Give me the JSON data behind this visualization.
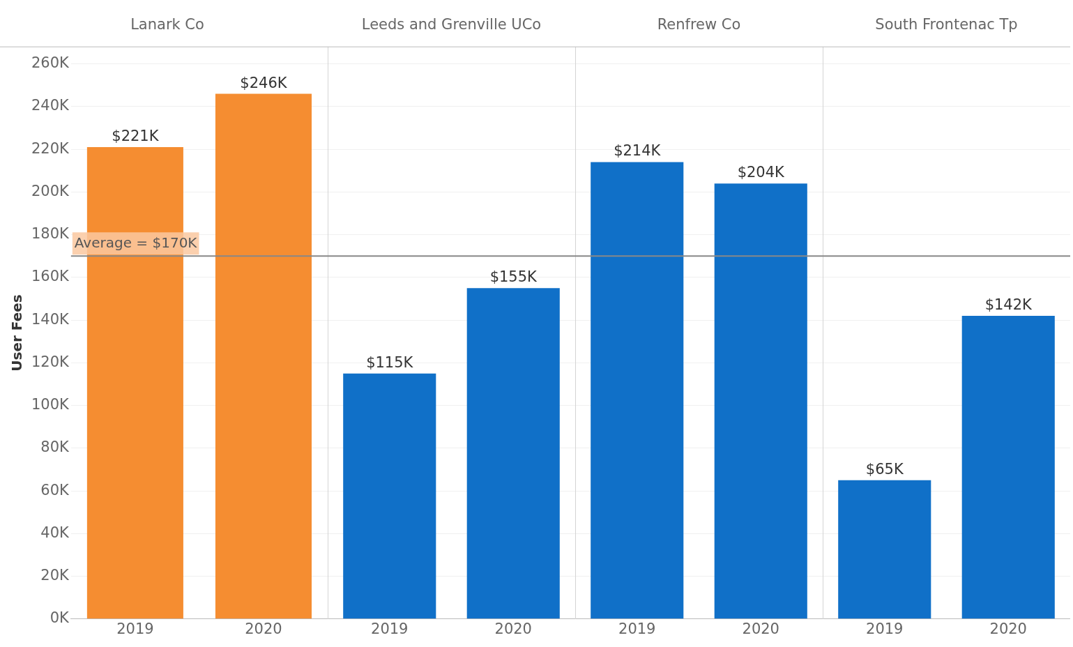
{
  "chart_data": [
    {
      "type": "bar",
      "title": "Lanark Co",
      "ylabel": "User Fees",
      "categories": [
        "2019",
        "2020"
      ],
      "values": [
        221,
        246
      ],
      "colors": [
        "#f58d31",
        "#f58d31"
      ],
      "value_labels": [
        "$221K",
        "$246K"
      ],
      "ylim": [
        0,
        268
      ],
      "yticks": [
        {
          "value": 0,
          "label": "0K"
        },
        {
          "value": 20,
          "label": "20K"
        },
        {
          "value": 40,
          "label": "40K"
        },
        {
          "value": 60,
          "label": "60K"
        },
        {
          "value": 80,
          "label": "80K"
        },
        {
          "value": 100,
          "label": "100K"
        },
        {
          "value": 120,
          "label": "120K"
        },
        {
          "value": 140,
          "label": "140K"
        },
        {
          "value": 160,
          "label": "160K"
        },
        {
          "value": 180,
          "label": "180K"
        },
        {
          "value": 200,
          "label": "200K"
        },
        {
          "value": 220,
          "label": "220K"
        },
        {
          "value": 240,
          "label": "240K"
        },
        {
          "value": 260,
          "label": "260K"
        }
      ],
      "grid": "y",
      "ref_lines": [
        {
          "axis": "y",
          "value": 170,
          "label": "Average = $170K",
          "color": "#888888"
        }
      ]
    },
    {
      "type": "bar",
      "title": "Leeds and Grenville UCo",
      "categories": [
        "2019",
        "2020"
      ],
      "values": [
        115,
        155
      ],
      "colors": [
        "#1070c8",
        "#1070c8"
      ],
      "value_labels": [
        "$115K",
        "$155K"
      ],
      "ylim": [
        0,
        268
      ],
      "yticks": [
        0,
        20,
        40,
        60,
        80,
        100,
        120,
        140,
        160,
        180,
        200,
        220,
        240,
        260
      ],
      "grid": "y",
      "tick_labels": "x",
      "ref_lines": [
        {
          "axis": "y",
          "value": 170,
          "color": "#888888"
        }
      ]
    },
    {
      "type": "bar",
      "title": "Renfrew Co",
      "categories": [
        "2019",
        "2020"
      ],
      "values": [
        214,
        204
      ],
      "colors": [
        "#1070c8",
        "#1070c8"
      ],
      "value_labels": [
        "$214K",
        "$204K"
      ],
      "ylim": [
        0,
        268
      ],
      "yticks": [
        0,
        20,
        40,
        60,
        80,
        100,
        120,
        140,
        160,
        180,
        200,
        220,
        240,
        260
      ],
      "grid": "y",
      "tick_labels": "x",
      "ref_lines": [
        {
          "axis": "y",
          "value": 170,
          "color": "#888888"
        }
      ]
    },
    {
      "type": "bar",
      "title": "South Frontenac Tp",
      "categories": [
        "2019",
        "2020"
      ],
      "values": [
        65,
        142
      ],
      "colors": [
        "#1070c8",
        "#1070c8"
      ],
      "value_labels": [
        "$65K",
        "$142K"
      ],
      "ylim": [
        0,
        268
      ],
      "yticks": [
        0,
        20,
        40,
        60,
        80,
        100,
        120,
        140,
        160,
        180,
        200,
        220,
        240,
        260
      ],
      "grid": "y",
      "tick_labels": "x",
      "ref_lines": [
        {
          "axis": "y",
          "value": 170,
          "color": "#888888"
        }
      ]
    }
  ]
}
